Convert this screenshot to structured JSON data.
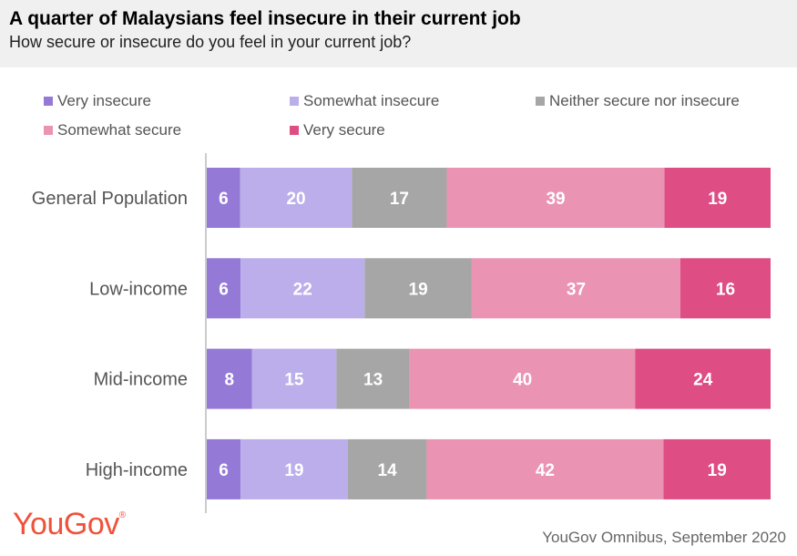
{
  "title": "A quarter of Malaysians feel insecure in their current job",
  "subtitle": "How secure or insecure do you feel in your current job?",
  "source": "YouGov Omnibus, September 2020",
  "brand": {
    "name": "YouGov",
    "mark": "®"
  },
  "colors": {
    "header_bg": "#f0f0f0",
    "axis": "#999999",
    "label_text": "#ffffff",
    "brand": "#f0513a"
  },
  "chart_data": {
    "type": "bar",
    "orientation": "horizontal",
    "stacked": true,
    "title": "A quarter of Malaysians feel insecure in their current job",
    "subtitle": "How secure or insecure do you feel in your current job?",
    "categories": [
      "General Population",
      "Low-income",
      "Mid-income",
      "High-income"
    ],
    "series": [
      {
        "name": "Very insecure",
        "color": "#9479d7",
        "values": [
          6,
          6,
          8,
          6
        ]
      },
      {
        "name": "Somewhat insecure",
        "color": "#bcaeea",
        "values": [
          20,
          22,
          15,
          19
        ]
      },
      {
        "name": "Neither secure nor insecure",
        "color": "#a6a6a6",
        "values": [
          17,
          19,
          13,
          14
        ]
      },
      {
        "name": "Somewhat secure",
        "color": "#ea93b2",
        "values": [
          39,
          37,
          40,
          42
        ]
      },
      {
        "name": "Very secure",
        "color": "#de4d83",
        "values": [
          19,
          16,
          24,
          19
        ]
      }
    ],
    "legend_position": "top",
    "xlabel": "",
    "ylabel": "",
    "grid": false
  }
}
